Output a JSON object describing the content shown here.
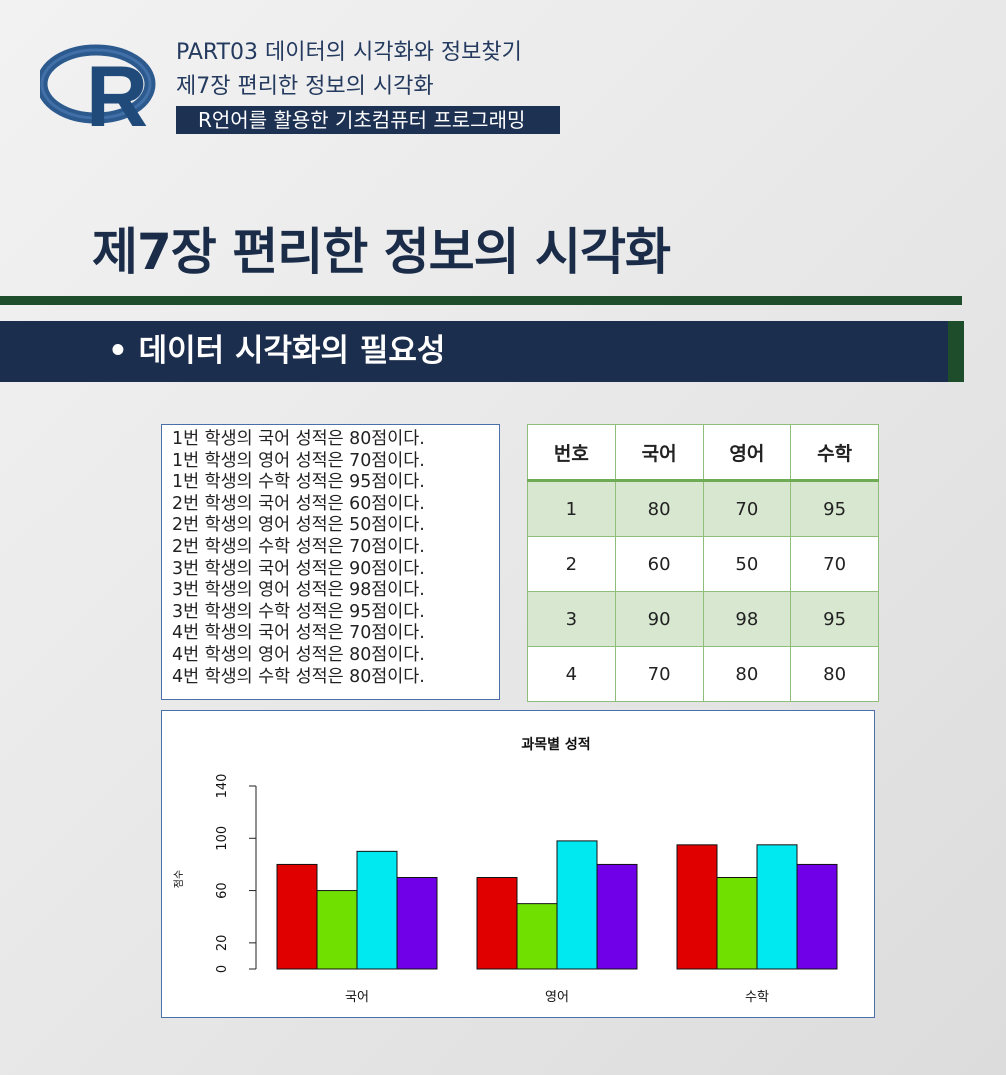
{
  "header": {
    "part": "PART03 데이터의 시각화와 정보찾기",
    "chapter": "제7장 편리한 정보의 시각화",
    "course": "R언어를 활용한 기초컴퓨터 프로그래밍",
    "logo_letter": "R"
  },
  "slide": {
    "title": "제7장 편리한 정보의 시각화",
    "bullet": "• 데이터 시각화의 필요성"
  },
  "text_lines": [
    "1번 학생의 국어 성적은 80점이다.",
    "1번 학생의 영어 성적은 70점이다.",
    "1번 학생의 수학 성적은 95점이다.",
    "2번 학생의 국어 성적은 60점이다.",
    "2번 학생의 영어 성적은 50점이다.",
    "2번 학생의 수학 성적은 70점이다.",
    "3번 학생의 국어 성적은 90점이다.",
    "3번 학생의 영어 성적은 98점이다.",
    "3번 학생의 수학 성적은 95점이다.",
    "4번 학생의 국어 성적은 70점이다.",
    "4번 학생의 영어 성적은 80점이다.",
    "4번 학생의 수학 성적은 80점이다."
  ],
  "table": {
    "headers": [
      "번호",
      "국어",
      "영어",
      "수학"
    ],
    "rows": [
      [
        "1",
        "80",
        "70",
        "95"
      ],
      [
        "2",
        "60",
        "50",
        "70"
      ],
      [
        "3",
        "90",
        "98",
        "95"
      ],
      [
        "4",
        "70",
        "80",
        "80"
      ]
    ]
  },
  "chart_data": {
    "type": "bar",
    "title": "과목별 성적",
    "ylabel": "점수",
    "xlabel": "",
    "categories": [
      "국어",
      "영어",
      "수학"
    ],
    "ylim": [
      0,
      140
    ],
    "yticks": [
      0,
      20,
      60,
      100,
      140
    ],
    "series": [
      {
        "values": [
          80,
          70,
          95
        ],
        "color": "#e00000"
      },
      {
        "values": [
          60,
          50,
          70
        ],
        "color": "#6fe000"
      },
      {
        "values": [
          90,
          98,
          95
        ],
        "color": "#00e8f0"
      },
      {
        "values": [
          70,
          80,
          80
        ],
        "color": "#7000e8"
      }
    ],
    "grid": false,
    "legend": "none"
  }
}
